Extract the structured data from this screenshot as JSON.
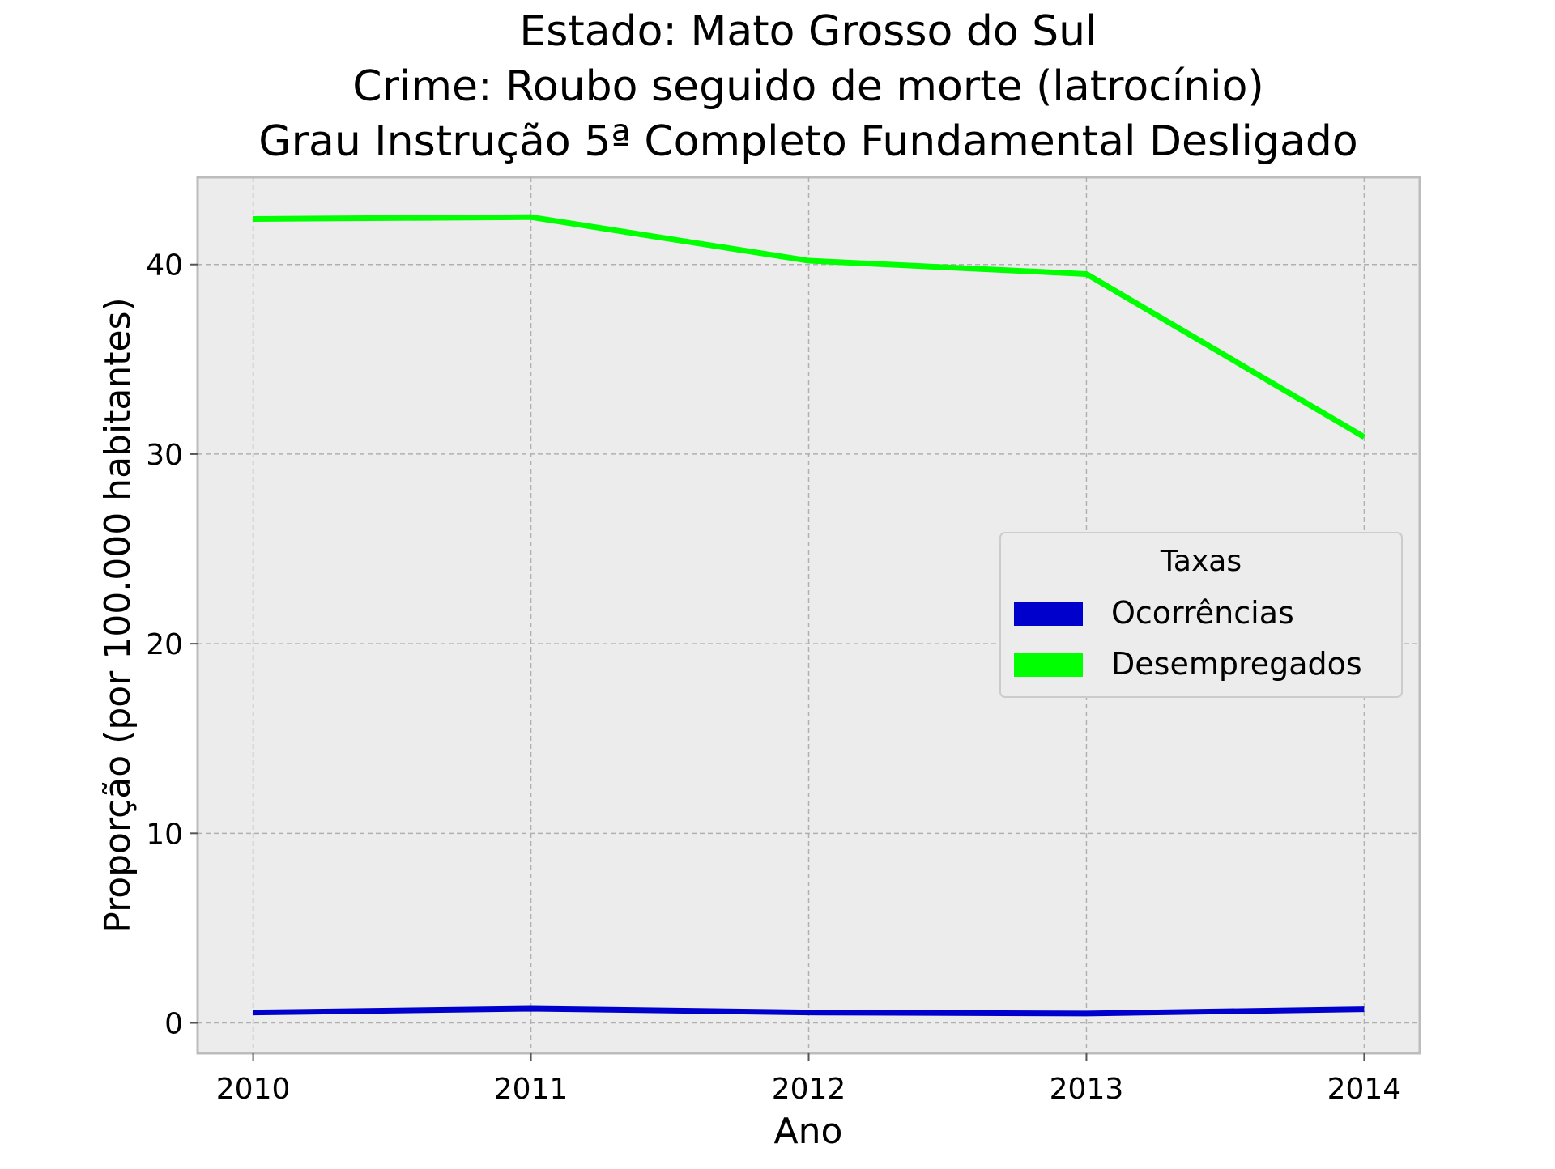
{
  "chart_data": {
    "type": "line",
    "title_lines": [
      "Estado: Mato Grosso do Sul",
      "Crime: Roubo seguido de morte (latrocínio)",
      "Grau Instrução  5ª Completo Fundamental   Desligado"
    ],
    "xlabel": "Ano",
    "ylabel": "Proporção (por 100.000 habitantes)",
    "x": [
      2010,
      2011,
      2012,
      2013,
      2014
    ],
    "x_tick_labels": [
      "2010",
      "2011",
      "2012",
      "2013",
      "2014"
    ],
    "y_ticks": [
      0,
      10,
      20,
      30,
      40
    ],
    "y_tick_labels": [
      "0",
      "10",
      "20",
      "30",
      "40"
    ],
    "xlim": [
      2009.8,
      2014.2
    ],
    "ylim": [
      -1.6,
      44.6
    ],
    "grid": true,
    "grid_style": "dashed",
    "background": "#ececec",
    "legend": {
      "title": "Taxas",
      "placement": "center-right"
    },
    "series": [
      {
        "name": "Ocorrências",
        "color": "#0000cc",
        "values": [
          0.55,
          0.75,
          0.55,
          0.5,
          0.72
        ]
      },
      {
        "name": "Desempregados",
        "color": "#00ff00",
        "values": [
          42.4,
          42.5,
          40.2,
          39.5,
          30.9
        ]
      }
    ]
  }
}
